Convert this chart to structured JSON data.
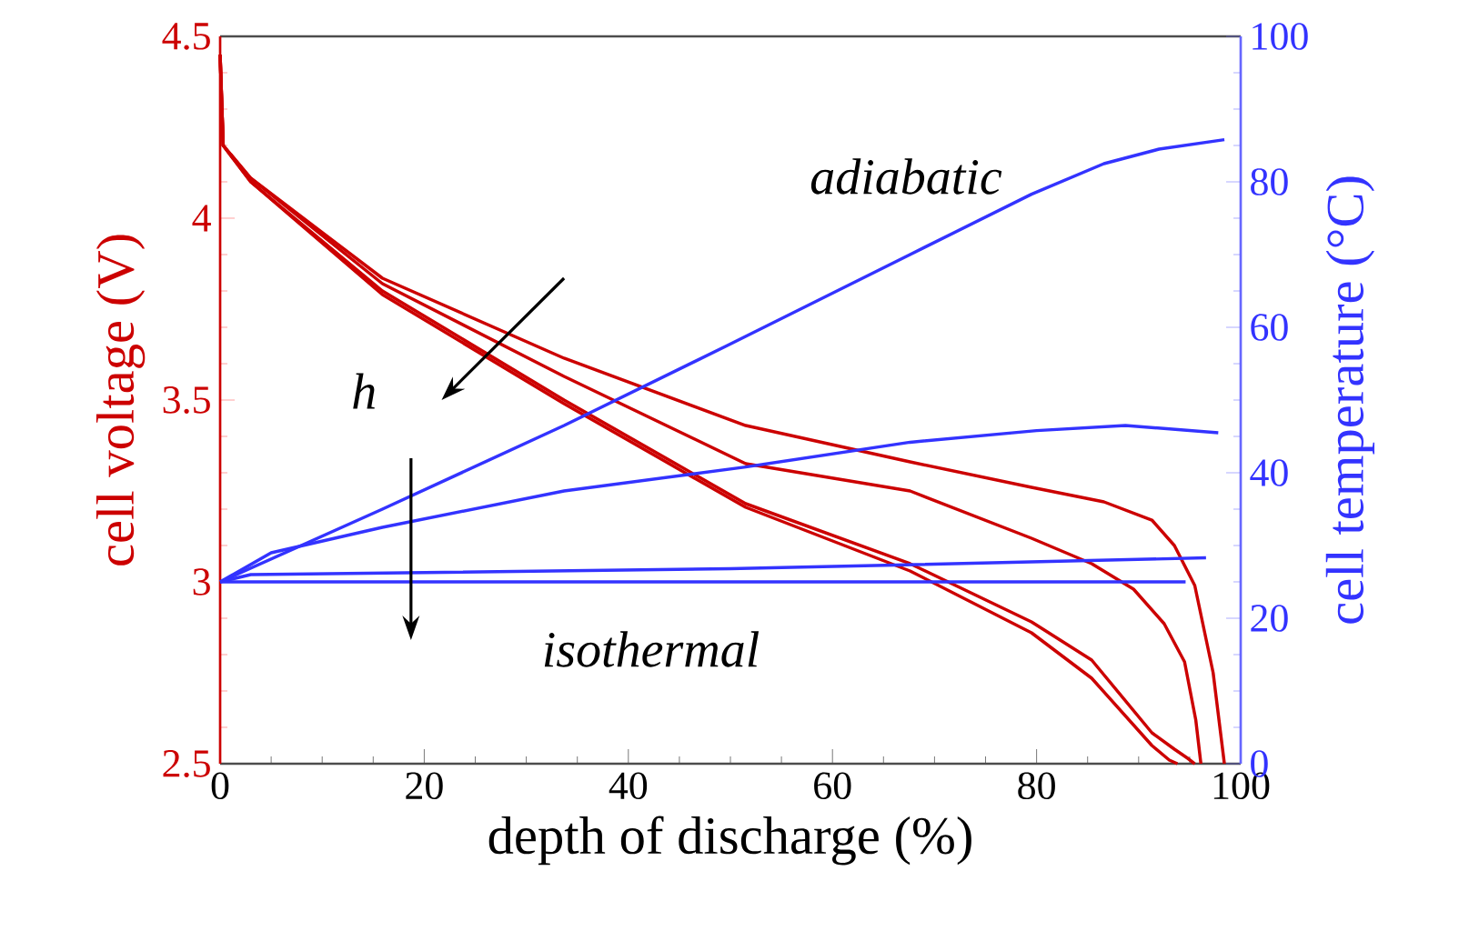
{
  "chart_data": {
    "type": "line",
    "xlabel": "depth of discharge (%)",
    "ylabel": "cell voltage (V)",
    "y2label": "cell temperature (°C)",
    "annotations": [
      "adiabatic",
      "h",
      "isothermal"
    ],
    "xlim": [
      0,
      100
    ],
    "xticks": [
      0,
      20,
      40,
      60,
      80,
      100
    ],
    "ylim": [
      2.5,
      4.5
    ],
    "yticks": [
      2.5,
      3,
      3.5,
      4,
      4.5
    ],
    "y2lim": [
      0,
      100
    ],
    "y2ticks": [
      0,
      20,
      40,
      60,
      80,
      100
    ],
    "series": [
      {
        "color": "#cc0000",
        "x": [
          0,
          0.3,
          3,
          15.9,
          33.7,
          51.5,
          67.6,
          79.5,
          86.6,
          91.3,
          93.5,
          95.5,
          97.3,
          98.4
        ],
        "values": [
          4.45,
          4.2,
          4.11,
          3.835,
          3.615,
          3.43,
          3.33,
          3.26,
          3.22,
          3.17,
          3.1,
          2.99,
          2.75,
          2.5
        ]
      },
      {
        "color": "#cc0000",
        "x": [
          0,
          0.3,
          3,
          15.9,
          33.7,
          51.5,
          67.6,
          79.5,
          85.4,
          89.5,
          92.5,
          94.5,
          95.6,
          96.1
        ],
        "values": [
          4.45,
          4.2,
          4.11,
          3.82,
          3.565,
          3.325,
          3.25,
          3.12,
          3.05,
          2.98,
          2.885,
          2.78,
          2.62,
          2.5
        ]
      },
      {
        "color": "#cc0000",
        "x": [
          0,
          0.3,
          3,
          15.9,
          33.7,
          51.5,
          67.6,
          79.5,
          85.4,
          91.3,
          93.5,
          94.8,
          95.5
        ],
        "values": [
          4.45,
          4.2,
          4.1,
          3.8,
          3.5,
          3.215,
          3.05,
          2.89,
          2.785,
          2.585,
          2.54,
          2.515,
          2.5
        ]
      },
      {
        "color": "#cc0000",
        "x": [
          0,
          0.3,
          3,
          15.9,
          33.7,
          51.5,
          67.6,
          79.5,
          85.4,
          91.3,
          93.0,
          93.8
        ],
        "values": [
          4.45,
          4.2,
          4.1,
          3.79,
          3.49,
          3.205,
          3.03,
          2.86,
          2.735,
          2.55,
          2.51,
          2.5
        ]
      },
      {
        "color": "#3333ff",
        "axis": "y2",
        "x": [
          0,
          15.9,
          33.7,
          49.7,
          67.6,
          79.5,
          86.6,
          92,
          98.4
        ],
        "values": [
          25,
          35,
          46.5,
          57.5,
          70,
          78.3,
          82.5,
          84.5,
          85.8
        ]
      },
      {
        "color": "#3333ff",
        "axis": "y2",
        "x": [
          0,
          5,
          15.9,
          33.7,
          51.5,
          67.6,
          80,
          88.7,
          97.8
        ],
        "values": [
          25,
          29,
          32.5,
          37.5,
          40.8,
          44.2,
          45.8,
          46.5,
          45.5
        ]
      },
      {
        "color": "#3333ff",
        "axis": "y2",
        "x": [
          0,
          3,
          50,
          96.6
        ],
        "values": [
          25,
          26,
          26.8,
          28.3
        ]
      },
      {
        "color": "#3333ff",
        "axis": "y2",
        "x": [
          0,
          94.6
        ],
        "values": [
          25,
          25
        ]
      }
    ]
  }
}
